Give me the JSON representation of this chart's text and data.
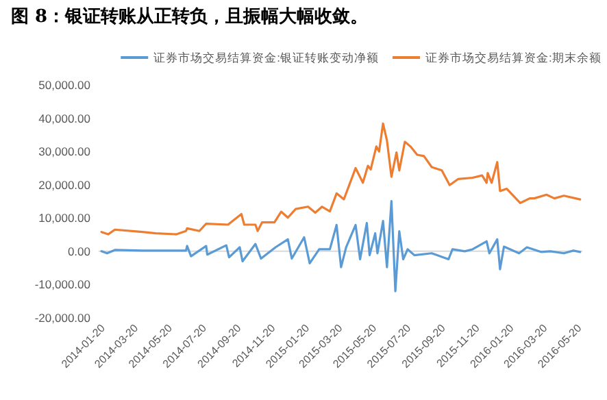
{
  "chart_data": {
    "type": "line",
    "title": "图 8：银证转账从正转负，且振幅大幅收敛。",
    "legend": "top",
    "ylim": [
      -20000,
      50000
    ],
    "yticks": [
      {
        "value": -20000,
        "label": "-20,000.00"
      },
      {
        "value": -10000,
        "label": "-10,000.00"
      },
      {
        "value": 0,
        "label": "0.00"
      },
      {
        "value": 10000,
        "label": "10,000.00"
      },
      {
        "value": 20000,
        "label": "20,000.00"
      },
      {
        "value": 30000,
        "label": "30,000.00"
      },
      {
        "value": 40000,
        "label": "40,000.00"
      },
      {
        "value": 50000,
        "label": "50,000.00"
      }
    ],
    "xlim": [
      "2014-01-15",
      "2016-05-28"
    ],
    "xticks": [
      "2014-01-20",
      "2014-03-20",
      "2014-05-20",
      "2014-07-20",
      "2014-09-20",
      "2014-11-20",
      "2015-01-20",
      "2015-03-20",
      "2015-05-20",
      "2015-07-20",
      "2015-09-20",
      "2015-11-20",
      "2016-01-20",
      "2016-03-20",
      "2016-05-20"
    ],
    "series": [
      {
        "name": "证券市场交易结算资金:银证转账变动净额",
        "color": "#5b9bd5",
        "x": [
          "2014-01-20",
          "2014-01-30",
          "2014-02-13",
          "2014-04-03",
          "2014-06-20",
          "2014-06-22",
          "2014-06-29",
          "2014-07-26",
          "2014-07-28",
          "2014-08-31",
          "2014-09-05",
          "2014-09-24",
          "2014-09-29",
          "2014-10-22",
          "2014-11-01",
          "2014-11-27",
          "2014-12-19",
          "2014-12-26",
          "2015-01-17",
          "2015-01-27",
          "2015-02-13",
          "2015-03-04",
          "2015-03-16",
          "2015-03-24",
          "2015-04-02",
          "2015-04-19",
          "2015-04-27",
          "2015-05-09",
          "2015-05-14",
          "2015-05-24",
          "2015-05-28",
          "2015-06-07",
          "2015-06-14",
          "2015-06-22",
          "2015-06-29",
          "2015-07-06",
          "2015-07-13",
          "2015-07-21",
          "2015-08-02",
          "2015-09-02",
          "2015-10-02",
          "2015-10-09",
          "2015-10-31",
          "2015-11-14",
          "2015-12-09",
          "2015-12-14",
          "2015-12-28",
          "2016-01-02",
          "2016-01-09",
          "2016-02-05",
          "2016-02-19",
          "2016-03-15",
          "2016-04-01",
          "2016-04-25",
          "2016-05-12",
          "2016-05-24"
        ],
        "values": [
          0,
          -600,
          400,
          200,
          200,
          1600,
          -1500,
          1600,
          -1000,
          1800,
          -1800,
          1200,
          -3000,
          2200,
          -2200,
          1200,
          3600,
          -2200,
          4200,
          -3600,
          600,
          600,
          7900,
          -4800,
          1200,
          7900,
          -2400,
          8500,
          -1200,
          5400,
          -600,
          9100,
          -4800,
          15100,
          -12000,
          6000,
          -2400,
          600,
          -1200,
          -600,
          -2400,
          600,
          0,
          600,
          3000,
          -600,
          3600,
          -5400,
          1400,
          -600,
          1200,
          -200,
          0,
          -600,
          200,
          -200
        ]
      },
      {
        "name": "证券市场交易结算资金:期末余额",
        "color": "#ed7d31",
        "x": [
          "2014-01-20",
          "2014-02-01",
          "2014-02-13",
          "2014-04-03",
          "2014-04-27",
          "2014-06-03",
          "2014-06-20",
          "2014-06-22",
          "2014-07-14",
          "2014-07-26",
          "2014-09-03",
          "2014-09-27",
          "2014-10-02",
          "2014-10-22",
          "2014-10-26",
          "2014-11-03",
          "2014-11-25",
          "2014-12-07",
          "2014-12-19",
          "2015-01-02",
          "2015-01-24",
          "2015-02-06",
          "2015-02-18",
          "2015-03-04",
          "2015-03-16",
          "2015-03-29",
          "2015-04-19",
          "2015-05-02",
          "2015-05-11",
          "2015-05-16",
          "2015-05-26",
          "2015-05-31",
          "2015-06-07",
          "2015-06-14",
          "2015-06-22",
          "2015-07-01",
          "2015-07-06",
          "2015-07-16",
          "2015-07-26",
          "2015-08-07",
          "2015-08-19",
          "2015-09-02",
          "2015-09-20",
          "2015-10-04",
          "2015-10-19",
          "2015-11-14",
          "2015-12-01",
          "2015-12-09",
          "2015-12-11",
          "2015-12-18",
          "2015-12-28",
          "2016-01-02",
          "2016-01-14",
          "2016-02-07",
          "2016-02-24",
          "2016-03-03",
          "2016-03-25",
          "2016-04-08",
          "2016-04-25",
          "2016-05-24"
        ],
        "values": [
          5800,
          5100,
          6500,
          5800,
          5400,
          5100,
          6100,
          6900,
          6100,
          8300,
          8000,
          11200,
          8000,
          8000,
          6100,
          8700,
          8700,
          11900,
          10100,
          12700,
          13400,
          11600,
          13400,
          12000,
          17400,
          15600,
          25000,
          20600,
          25700,
          24600,
          31500,
          30000,
          38400,
          33300,
          22400,
          29700,
          24300,
          32900,
          31500,
          29000,
          28600,
          25300,
          24300,
          19900,
          21700,
          22100,
          22800,
          20600,
          23500,
          20600,
          26800,
          18100,
          18800,
          14500,
          15900,
          15900,
          17000,
          15900,
          16700,
          15600
        ]
      }
    ]
  }
}
